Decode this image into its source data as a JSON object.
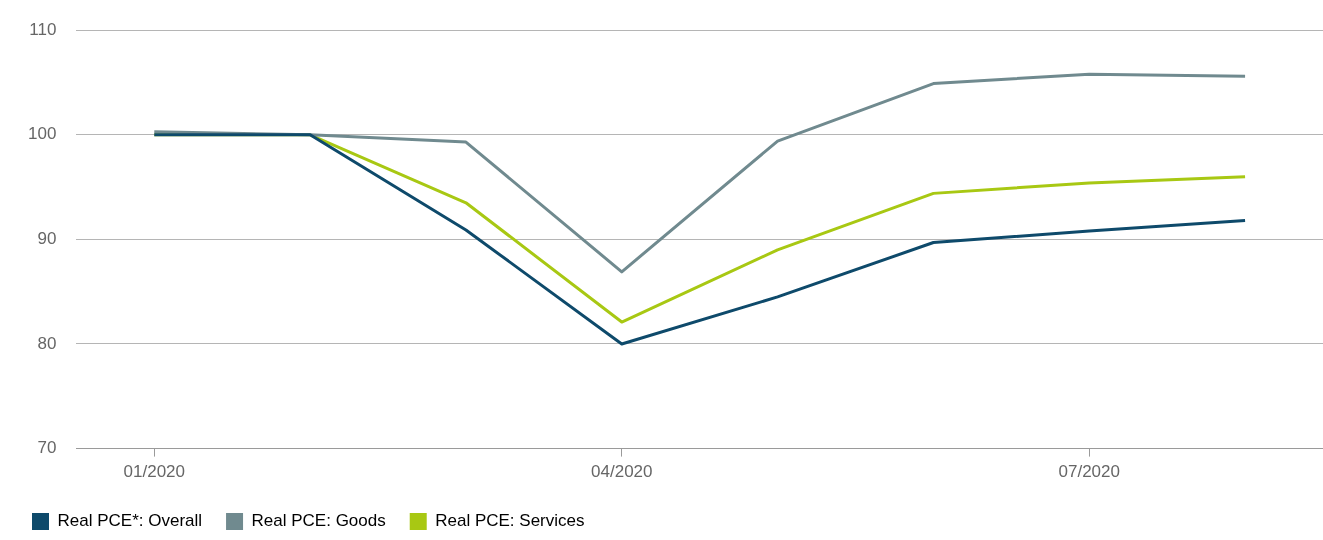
{
  "chart_data": {
    "type": "line",
    "categories": [
      "01/2020",
      null,
      null,
      "04/2020",
      null,
      null,
      "07/2020",
      null
    ],
    "series": [
      {
        "name": "Real PCE*: Overall",
        "color": "#0e4a6b",
        "values": [
          100,
          100,
          90.9,
          80,
          84.5,
          89.7,
          90.8,
          91.8
        ]
      },
      {
        "name": "Real PCE: Goods",
        "color": "#708a8f",
        "values": [
          100.3,
          100,
          99.3,
          86.9,
          99.4,
          104.9,
          105.8,
          105.6
        ]
      },
      {
        "name": "Real PCE: Services",
        "color": "#a8c813",
        "values": [
          100,
          100,
          93.5,
          82.1,
          89.0,
          94.4,
          95.4,
          96.0
        ]
      }
    ],
    "ylim": [
      70,
      110
    ],
    "yticks": [
      70,
      80,
      90,
      100,
      110
    ],
    "grid": "y",
    "legend": "bottom left",
    "marker": "none",
    "line_style": "solid"
  }
}
